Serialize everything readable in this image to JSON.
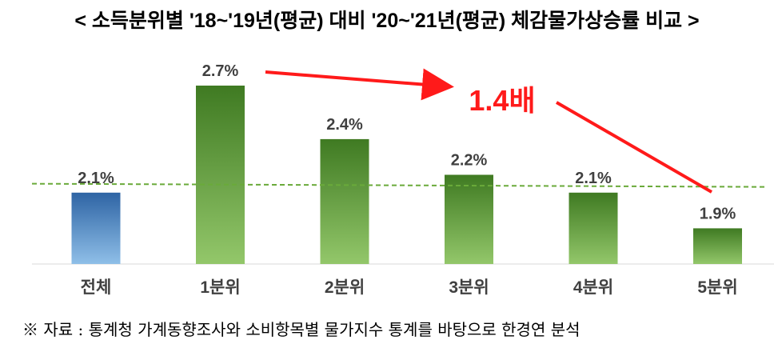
{
  "chart_data": {
    "type": "bar",
    "title": "< 소득분위별 '18~'19년(평균) 대비 '20~'21년(평균) 체감물가상승률 비교 >",
    "categories": [
      "전체",
      "1분위",
      "2분위",
      "3분위",
      "4분위",
      "5분위"
    ],
    "values": [
      2.1,
      2.7,
      2.4,
      2.2,
      2.1,
      1.9
    ],
    "value_labels": [
      "2.1%",
      "2.7%",
      "2.4%",
      "2.2%",
      "2.1%",
      "1.9%"
    ],
    "ylim": [
      1.7,
      2.7
    ],
    "reference_line": 2.15,
    "annotation": "1.4배",
    "xlabel": "",
    "ylabel": "",
    "grid": false,
    "colors": {
      "total": "#3f78b4",
      "quintile": "#4f8f2c",
      "annotation": "#ff1a1a",
      "reference": "#6aaa3a"
    }
  },
  "footnote": "※ 자료 : 통계청 가계동향조사와 소비항목별 물가지수 통계를 바탕으로 한경연 분석"
}
